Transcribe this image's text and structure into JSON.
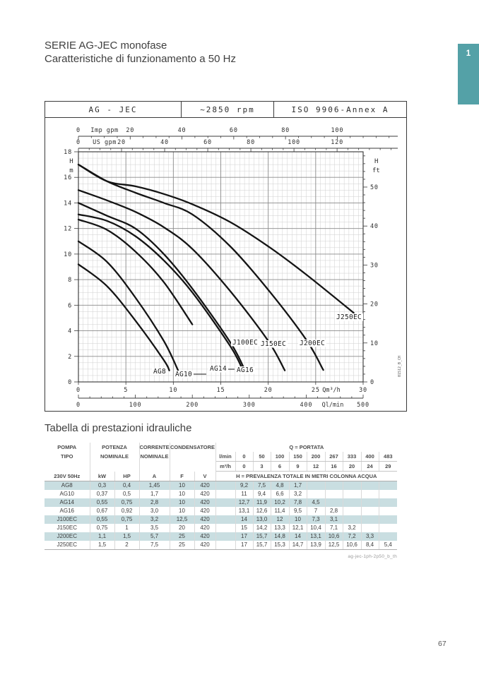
{
  "page": {
    "number": "67",
    "tab_number": "1",
    "accent_color": "#54a1a7",
    "shade_color": "#c9dee1"
  },
  "header": {
    "title_line1": "SERIE AG-JEC monofase",
    "title_line2": "Caratteristiche di funzionamento a 50 Hz"
  },
  "chart_box": {
    "cell1": "AG - JEC",
    "cell2": "~2850 rpm",
    "cell3": "ISO 9906-Annex A",
    "drawing_code": "01512_B_CH"
  },
  "chart_data": {
    "type": "line",
    "title": "Pump performance curves H vs Q",
    "x_unit": "m³/h",
    "x": [
      0,
      3,
      6,
      9,
      12,
      16,
      20,
      24,
      29
    ],
    "series": [
      {
        "name": "AG8",
        "values": [
          9.2,
          7.5,
          4.8,
          1.7
        ]
      },
      {
        "name": "AG10",
        "values": [
          11,
          9.4,
          6.6,
          3.2
        ]
      },
      {
        "name": "AG14",
        "values": [
          12.7,
          11.9,
          10.2,
          7.8,
          4.5
        ]
      },
      {
        "name": "AG16",
        "values": [
          13.1,
          12.6,
          11.4,
          9.5,
          7,
          2.8
        ]
      },
      {
        "name": "J100EC",
        "values": [
          14,
          13.0,
          12,
          10,
          7.3,
          3.1
        ]
      },
      {
        "name": "J150EC",
        "values": [
          15,
          14.2,
          13.3,
          12.1,
          10.4,
          7.1,
          3.2
        ]
      },
      {
        "name": "J200EC",
        "values": [
          17,
          15.7,
          14.8,
          14,
          13.1,
          10.6,
          7.2,
          3.3
        ]
      },
      {
        "name": "J250EC",
        "values": [
          17,
          15.7,
          15.3,
          14.7,
          13.9,
          12.5,
          10.6,
          8.4,
          5.4
        ]
      }
    ],
    "axes": {
      "imp_gpm": {
        "label": "Imp gpm",
        "ticks": [
          0,
          20,
          40,
          60,
          80,
          100
        ],
        "gpm_per_m3h": 3.6662
      },
      "us_gpm": {
        "label": "US gpm",
        "ticks": [
          0,
          20,
          40,
          60,
          80,
          100,
          120
        ],
        "gpm_per_m3h": 4.4029
      },
      "h_m": {
        "label_top": "H",
        "label_bottom": "m",
        "ticks": [
          18,
          16,
          14,
          12,
          10,
          8,
          6,
          4,
          2,
          0
        ],
        "range": [
          0,
          18
        ]
      },
      "h_ft": {
        "label_top": "H",
        "label_bottom": "ft",
        "ticks": [
          50,
          40,
          30,
          20,
          10,
          0
        ],
        "ft_per_m": 3.2808
      },
      "q_m3h": {
        "label": "Qm³/h",
        "ticks": [
          0,
          5,
          10,
          15,
          20,
          25,
          30
        ],
        "range": [
          0,
          30
        ]
      },
      "q_lmin": {
        "label": "Ql/min",
        "ticks": [
          0,
          100,
          200,
          300,
          400,
          500
        ],
        "range": [
          0,
          500
        ]
      }
    },
    "grid": true,
    "legend_position": "labels-on-curves"
  },
  "table": {
    "title": "Tabella di prestazioni idrauliche",
    "header": {
      "pompa_1": "POMPA",
      "pompa_2": "TIPO",
      "pompa_3": "230V 50Hz",
      "potenza": "POTENZA",
      "potenza_sub": "NOMINALE",
      "kw": "kW",
      "hp": "HP",
      "corrente": "CORRENTE",
      "corrente_sub": "NOMINALE",
      "a": "A",
      "condensatore": "CONDENSATORE",
      "f": "F",
      "v": "V",
      "portata": "Q = PORTATA",
      "lmin_label": "l/min",
      "lmin_values": [
        "0",
        "50",
        "100",
        "150",
        "200",
        "267",
        "333",
        "400",
        "483"
      ],
      "m3h_label": "m³/h",
      "m3h_values": [
        "0",
        "3",
        "6",
        "9",
        "12",
        "16",
        "20",
        "24",
        "29"
      ],
      "h_row": "H = PREVALENZA TOTALE IN METRI COLONNA ACQUA"
    },
    "rows": [
      {
        "tipo": "AG8",
        "kw": "0,3",
        "hp": "0,4",
        "a": "1,45",
        "f": "10",
        "v": "420",
        "h": [
          "9,2",
          "7,5",
          "4,8",
          "1,7"
        ],
        "shaded": true
      },
      {
        "tipo": "AG10",
        "kw": "0,37",
        "hp": "0,5",
        "a": "1,7",
        "f": "10",
        "v": "420",
        "h": [
          "11",
          "9,4",
          "6,6",
          "3,2"
        ],
        "shaded": false
      },
      {
        "tipo": "AG14",
        "kw": "0,55",
        "hp": "0,75",
        "a": "2,8",
        "f": "10",
        "v": "420",
        "h": [
          "12,7",
          "11,9",
          "10,2",
          "7,8",
          "4,5"
        ],
        "shaded": true
      },
      {
        "tipo": "AG16",
        "kw": "0,67",
        "hp": "0,92",
        "a": "3,0",
        "f": "10",
        "v": "420",
        "h": [
          "13,1",
          "12,6",
          "11,4",
          "9,5",
          "7",
          "2,8"
        ],
        "shaded": false
      },
      {
        "tipo": "J100EC",
        "kw": "0,55",
        "hp": "0,75",
        "a": "3,2",
        "f": "12,5",
        "v": "420",
        "h": [
          "14",
          "13,0",
          "12",
          "10",
          "7,3",
          "3,1"
        ],
        "shaded": true
      },
      {
        "tipo": "J150EC",
        "kw": "0,75",
        "hp": "1",
        "a": "3,5",
        "f": "20",
        "v": "420",
        "h": [
          "15",
          "14,2",
          "13,3",
          "12,1",
          "10,4",
          "7,1",
          "3,2"
        ],
        "shaded": false
      },
      {
        "tipo": "J200EC",
        "kw": "1,1",
        "hp": "1,5",
        "a": "5,7",
        "f": "25",
        "v": "420",
        "h": [
          "17",
          "15,7",
          "14,8",
          "14",
          "13,1",
          "10,6",
          "7,2",
          "3,3"
        ],
        "shaded": true
      },
      {
        "tipo": "J250EC",
        "kw": "1,5",
        "hp": "2",
        "a": "7,5",
        "f": "25",
        "v": "420",
        "h": [
          "17",
          "15,7",
          "15,3",
          "14,7",
          "13,9",
          "12,5",
          "10,6",
          "8,4",
          "5,4"
        ],
        "shaded": false
      }
    ],
    "footnote": "ag-jec-1ph-2p50_b_th"
  }
}
